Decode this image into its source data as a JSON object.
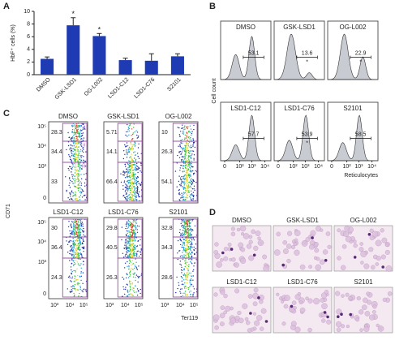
{
  "chart_data": [
    {
      "type": "bar",
      "panel_label": "A",
      "ylabel": "HbF⁺ cells (%)",
      "categories": [
        "DMSO",
        "GSK-LSD1",
        "OG-L002",
        "LSD1-C12",
        "LSD1-C76",
        "S2101"
      ],
      "values": [
        2.5,
        7.8,
        6.1,
        2.3,
        2.2,
        2.9
      ],
      "errors": [
        0.3,
        1.2,
        0.4,
        0.3,
        1.1,
        0.4
      ],
      "significance": [
        null,
        "*",
        "*",
        null,
        null,
        null
      ],
      "color": "#1f3bb3",
      "ylim": [
        0,
        10
      ],
      "yticks": [
        0,
        2,
        4,
        6,
        8,
        10
      ]
    }
  ],
  "panel_b": {
    "label": "B",
    "ylabel": "Cell count",
    "xlabel": "Reticulocytes",
    "xticks": [
      "0",
      "10²",
      "10³",
      "10⁴"
    ],
    "plots": [
      {
        "title": "DMSO",
        "gate": 53.1
      },
      {
        "title": "GSK-LSD1",
        "gate": 13.6,
        "mark": "*"
      },
      {
        "title": "OG-L002",
        "gate": 22.9,
        "mark": "*"
      },
      {
        "title": "LSD1-C12",
        "gate": 57.7
      },
      {
        "title": "LSD1-C76",
        "gate": 53.9,
        "mark": "*"
      },
      {
        "title": "S2101",
        "gate": 58.5
      }
    ]
  },
  "panel_c": {
    "label": "C",
    "ylabel": "CD71",
    "xlabel": "Ter119",
    "yticks": [
      "10⁵",
      "10⁴",
      "10³",
      "0"
    ],
    "xticks": [
      "10³",
      "10⁴",
      "10⁵"
    ],
    "gate_names": [
      "I",
      "II",
      "III"
    ],
    "plots": [
      {
        "title": "DMSO",
        "gates": [
          28.3,
          34.4,
          33
        ]
      },
      {
        "title": "GSK-LSD1",
        "gates": [
          5.71,
          14.1,
          66.4
        ]
      },
      {
        "title": "OG-L002",
        "gates": [
          10,
          26.3,
          54.1
        ]
      },
      {
        "title": "LSD1-C12",
        "gates": [
          30,
          36.4,
          24.3
        ]
      },
      {
        "title": "LSD1-C76",
        "gates": [
          29.8,
          40.5,
          26.3
        ]
      },
      {
        "title": "S2101",
        "gates": [
          32.8,
          34.3,
          28.6
        ]
      }
    ]
  },
  "panel_d": {
    "label": "D",
    "titles": [
      "DMSO",
      "GSK-LSD1",
      "OG-L002",
      "LSD1-C12",
      "LSD1-C76",
      "S2101"
    ]
  }
}
